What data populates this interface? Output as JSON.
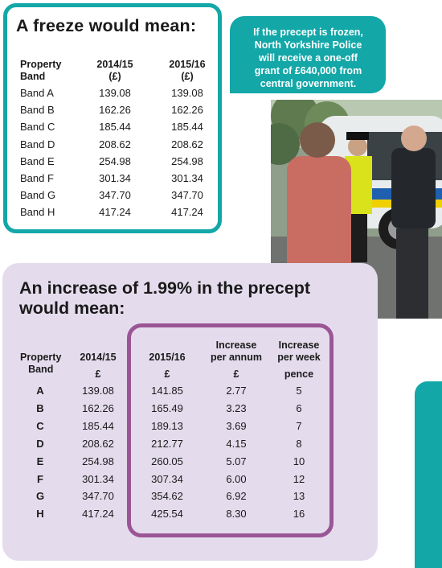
{
  "freeze": {
    "title": "A freeze would mean:",
    "headers": {
      "band": [
        "Property",
        "Band"
      ],
      "y1": [
        "2014/15",
        "(£)"
      ],
      "y2": [
        "2015/16",
        "(£)"
      ]
    },
    "rows": [
      [
        "Band A",
        "139.08",
        "139.08"
      ],
      [
        "Band B",
        "162.26",
        "162.26"
      ],
      [
        "Band C",
        "185.44",
        "185.44"
      ],
      [
        "Band D",
        "208.62",
        "208.62"
      ],
      [
        "Band E",
        "254.98",
        "254.98"
      ],
      [
        "Band F",
        "301.34",
        "301.34"
      ],
      [
        "Band G",
        "347.70",
        "347.70"
      ],
      [
        "Band H",
        "417.24",
        "417.24"
      ]
    ]
  },
  "callout": {
    "lines": [
      "If the precept is frozen,",
      "North Yorkshire Police",
      "will receive a one-off",
      "grant of £640,000 from",
      "central government."
    ]
  },
  "increase": {
    "title_lines": [
      "An increase of 1.99% in the precept",
      "would mean:"
    ],
    "headers": {
      "band": [
        "Property",
        "Band"
      ],
      "y1": [
        "2014/15",
        "£"
      ],
      "y2": [
        "2015/16",
        "£"
      ],
      "annum": [
        "Increase",
        "per annum",
        "£"
      ],
      "week": [
        "Increase",
        "per week",
        "pence"
      ]
    },
    "rows": [
      [
        "A",
        "139.08",
        "141.85",
        "2.77",
        "5"
      ],
      [
        "B",
        "162.26",
        "165.49",
        "3.23",
        "6"
      ],
      [
        "C",
        "185.44",
        "189.13",
        "3.69",
        "7"
      ],
      [
        "D",
        "208.62",
        "212.77",
        "4.15",
        "8"
      ],
      [
        "E",
        "254.98",
        "260.05",
        "5.07",
        "10"
      ],
      [
        "F",
        "301.34",
        "307.34",
        "6.00",
        "12"
      ],
      [
        "G",
        "347.70",
        "354.62",
        "6.92",
        "13"
      ],
      [
        "H",
        "417.24",
        "425.54",
        "8.30",
        "16"
      ]
    ]
  },
  "colors": {
    "teal": "#13a7a8",
    "lavender": "#e4dced",
    "purple": "#9b5595"
  }
}
